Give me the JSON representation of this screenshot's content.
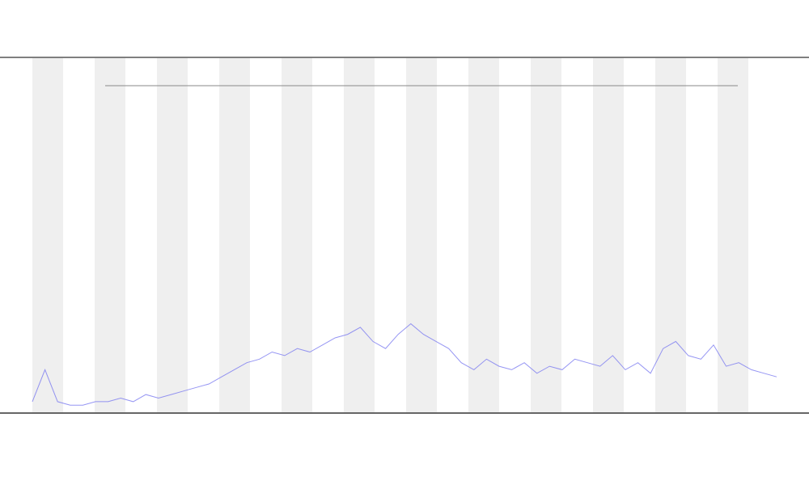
{
  "chart_data": {
    "type": "line",
    "x": [
      0,
      1,
      2,
      3,
      4,
      5,
      6,
      7,
      8,
      9,
      10,
      11,
      12,
      13,
      14,
      15,
      16,
      17,
      18,
      19,
      20,
      21,
      22,
      23,
      24,
      25,
      26,
      27,
      28,
      29,
      30,
      31,
      32,
      33,
      34,
      35,
      36,
      37,
      38,
      39,
      40,
      41,
      42,
      43,
      44,
      45,
      46,
      47,
      48,
      49,
      50,
      51,
      52,
      53,
      54,
      55,
      56,
      57,
      58,
      59
    ],
    "xlim": [
      0,
      59
    ],
    "ylim": [
      0,
      100
    ],
    "series": [
      {
        "color": "#7b7bf0",
        "values": [
          3,
          12,
          3,
          2,
          2,
          3,
          3,
          4,
          3,
          5,
          4,
          5,
          6,
          7,
          8,
          10,
          12,
          14,
          15,
          17,
          16,
          18,
          17,
          19,
          21,
          22,
          24,
          20,
          18,
          22,
          25,
          22,
          20,
          18,
          14,
          12,
          15,
          13,
          12,
          14,
          11,
          13,
          12,
          15,
          14,
          13,
          16,
          12,
          14,
          11,
          18,
          20,
          16,
          15,
          19,
          13,
          14,
          12,
          11,
          10
        ]
      }
    ]
  }
}
